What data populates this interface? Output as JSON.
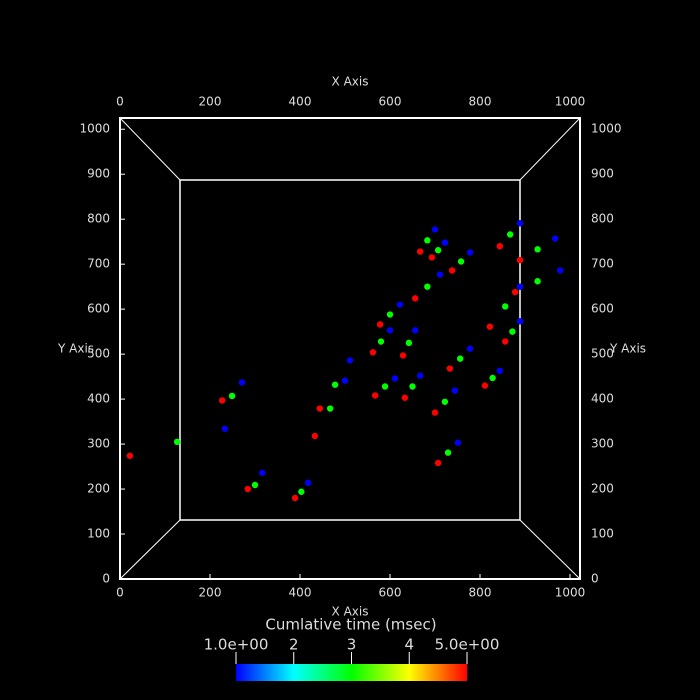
{
  "chart_data": {
    "type": "scatter",
    "x_label": "X Axis",
    "y_label": "Y Axis",
    "xlim": [
      0,
      1020
    ],
    "ylim": [
      0,
      1025
    ],
    "xticks": [
      0,
      200,
      400,
      600,
      800,
      1000
    ],
    "yticks": [
      0,
      100,
      200,
      300,
      400,
      500,
      600,
      700,
      800,
      900,
      1000
    ],
    "colorbar": {
      "title": "Cumlative time (msec)",
      "lim": [
        1,
        5
      ],
      "ticks": [
        {
          "value": 1,
          "label": "1.0e+00"
        },
        2,
        3,
        4,
        {
          "value": 5,
          "label": "5.0e+00"
        }
      ]
    },
    "series": [
      {
        "name": "Cumlative time (msec)",
        "x": [
          889,
          928,
          967,
          878,
          928,
          978,
          667,
          683,
          700,
          693,
          707,
          722,
          844,
          867,
          889,
          738,
          758,
          778,
          578,
          600,
          622,
          656,
          683,
          711,
          562,
          580,
          600,
          629,
          642,
          656,
          567,
          589,
          611,
          633,
          650,
          667,
          822,
          856,
          889,
          856,
          872,
          889,
          733,
          756,
          778,
          700,
          722,
          744,
          707,
          729,
          751,
          433,
          467,
          500,
          444,
          478,
          511,
          22,
          127,
          233,
          227,
          249,
          271,
          284,
          300,
          316,
          389,
          403,
          418,
          811,
          828,
          844
        ],
        "y": [
          709,
          733,
          757,
          638,
          662,
          686,
          728,
          753,
          777,
          715,
          731,
          748,
          740,
          766,
          791,
          686,
          706,
          726,
          566,
          588,
          610,
          624,
          650,
          677,
          504,
          528,
          553,
          497,
          525,
          553,
          408,
          428,
          446,
          403,
          428,
          452,
          561,
          606,
          650,
          528,
          550,
          573,
          468,
          490,
          512,
          370,
          394,
          419,
          258,
          281,
          303,
          318,
          379,
          441,
          379,
          432,
          486,
          274,
          305,
          334,
          397,
          407,
          437,
          200,
          209,
          236,
          180,
          194,
          214,
          430,
          447,
          463
        ],
        "time": [
          5,
          3,
          1,
          5,
          3,
          1,
          5,
          3,
          1,
          5,
          3,
          1,
          5,
          3,
          1,
          5,
          3,
          1,
          5,
          3,
          1,
          5,
          3,
          1,
          5,
          3,
          1,
          5,
          3,
          1,
          5,
          3,
          1,
          5,
          3,
          1,
          5,
          3,
          1,
          5,
          3,
          1,
          5,
          3,
          1,
          5,
          3,
          1,
          5,
          3,
          1,
          5,
          3,
          1,
          5,
          3,
          1,
          5,
          3,
          1,
          5,
          3,
          1,
          5,
          3,
          1,
          5,
          3,
          1,
          5,
          3,
          1
        ]
      }
    ]
  }
}
